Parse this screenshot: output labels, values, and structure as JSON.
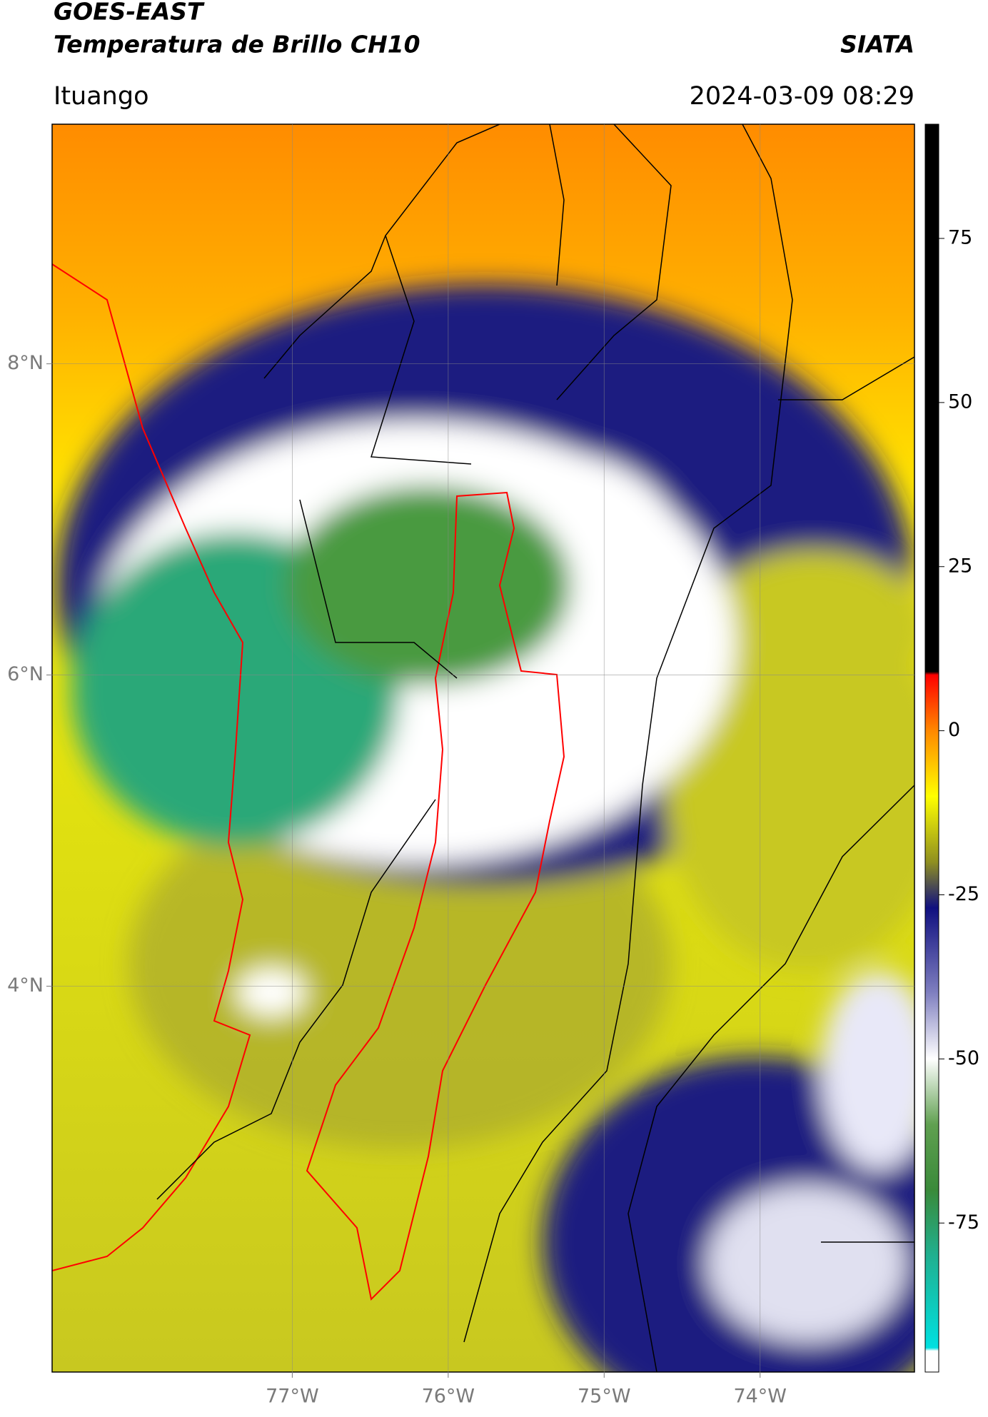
{
  "header": {
    "title": "GOES-EAST",
    "subtitle": "Temperatura de Brillo CH10",
    "source": "SIATA",
    "location": "Ituango",
    "datetime": "2024-03-09 08:29"
  },
  "map": {
    "xlim": [
      -78.54,
      -73.01
    ],
    "ylim": [
      1.52,
      9.54
    ],
    "xticks": [
      {
        "value": -77,
        "label": "77°W"
      },
      {
        "value": -76,
        "label": "76°W"
      },
      {
        "value": -75,
        "label": "75°W"
      },
      {
        "value": -74,
        "label": "74°W"
      }
    ],
    "yticks": [
      {
        "value": 8,
        "label": "8°N"
      },
      {
        "value": 6,
        "label": "6°N"
      },
      {
        "value": 4,
        "label": "4°N"
      }
    ],
    "grid": true
  },
  "colorbar": {
    "lim": [
      -97.7,
      92.4
    ],
    "ticks": [
      75,
      50,
      25,
      0,
      -25,
      -50,
      -75
    ],
    "colormap": [
      {
        "value": 92.4,
        "color": "#000000"
      },
      {
        "value": 9,
        "color": "#000000"
      },
      {
        "value": 8.5,
        "color": "#ff0000"
      },
      {
        "value": 0,
        "color": "#ff8800"
      },
      {
        "value": -10,
        "color": "#ffff00"
      },
      {
        "value": -20,
        "color": "#8f8f20"
      },
      {
        "value": -27,
        "color": "#101080"
      },
      {
        "value": -40,
        "color": "#8080c0"
      },
      {
        "value": -50,
        "color": "#ffffff"
      },
      {
        "value": -60,
        "color": "#60a050"
      },
      {
        "value": -70,
        "color": "#3a8a3a"
      },
      {
        "value": -80,
        "color": "#20b090"
      },
      {
        "value": -94,
        "color": "#00e0e0"
      },
      {
        "value": -94.5,
        "color": "#ffffff"
      },
      {
        "value": -97.7,
        "color": "#ffffff"
      }
    ]
  }
}
